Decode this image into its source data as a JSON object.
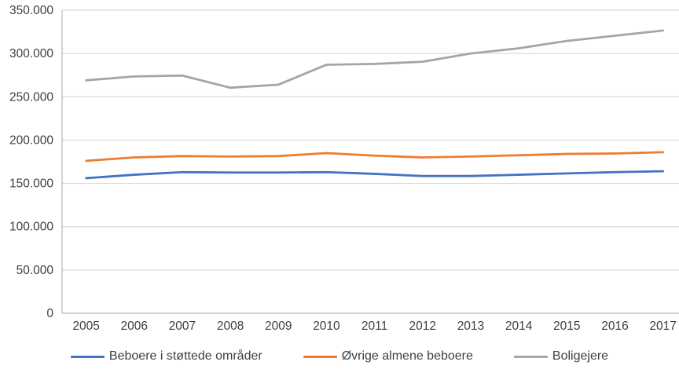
{
  "chart_data": {
    "type": "line",
    "x": [
      "2005",
      "2006",
      "2007",
      "2008",
      "2009",
      "2010",
      "2011",
      "2012",
      "2013",
      "2014",
      "2015",
      "2016",
      "2017"
    ],
    "series": [
      {
        "name": "Beboere i støttede områder",
        "color": "#4472C4",
        "values": [
          156000,
          160000,
          163000,
          162500,
          162500,
          163000,
          161000,
          158500,
          158500,
          160000,
          161500,
          163000,
          164000
        ]
      },
      {
        "name": "Øvrige almene beboere",
        "color": "#ED7D31",
        "values": [
          176000,
          180000,
          181500,
          181000,
          181500,
          185000,
          182000,
          180000,
          181000,
          182500,
          184000,
          184500,
          186000
        ]
      },
      {
        "name": "Boligejere",
        "color": "#A5A5A5",
        "values": [
          269000,
          273500,
          274500,
          260500,
          264000,
          287000,
          288000,
          290500,
          300000,
          306000,
          314500,
          320500,
          326500
        ]
      }
    ],
    "ylim": [
      0,
      350000
    ],
    "y_ticks": [
      {
        "value": 0,
        "label": "0"
      },
      {
        "value": 50000,
        "label": "50.000"
      },
      {
        "value": 100000,
        "label": "100.000"
      },
      {
        "value": 150000,
        "label": "150.000"
      },
      {
        "value": 200000,
        "label": "200.000"
      },
      {
        "value": 250000,
        "label": "250.000"
      },
      {
        "value": 300000,
        "label": "300.000"
      },
      {
        "value": 350000,
        "label": "350.000"
      }
    ],
    "grid": true,
    "legend_position": "bottom",
    "colors": {
      "gridline": "#D2D2D2",
      "axis": "#A8A8A8",
      "text": "#3F3F3F"
    }
  }
}
